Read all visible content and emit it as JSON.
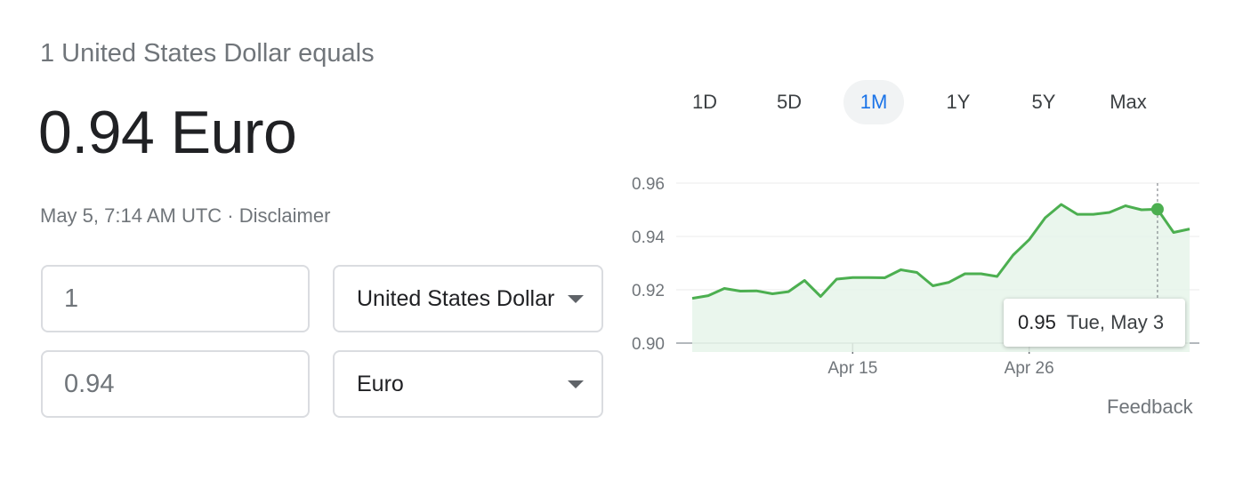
{
  "header": {
    "subtitle": "1 United States Dollar equals",
    "rate": "0.94 Euro",
    "timestamp": "May 5, 7:14 AM UTC",
    "separator": " · ",
    "disclaimer": "Disclaimer"
  },
  "converter": {
    "from_amount": "1",
    "from_currency": "United States Dollar",
    "to_amount": "0.94",
    "to_currency": "Euro"
  },
  "ranges": [
    {
      "label": "1D",
      "active": false
    },
    {
      "label": "5D",
      "active": false
    },
    {
      "label": "1M",
      "active": true
    },
    {
      "label": "1Y",
      "active": false
    },
    {
      "label": "5Y",
      "active": false
    },
    {
      "label": "Max",
      "active": false
    }
  ],
  "tooltip": {
    "value": "0.95",
    "date": "Tue, May 3"
  },
  "feedback": "Feedback",
  "colors": {
    "line": "#4caf50",
    "accent": "#1a73e8",
    "fill": "#e6f4ea"
  },
  "chart_data": {
    "type": "area",
    "title": "",
    "xlabel": "",
    "ylabel": "",
    "ylim": [
      0.9,
      0.96
    ],
    "yticks": [
      "0.96",
      "0.94",
      "0.92",
      "0.90"
    ],
    "xticks": [
      {
        "label": "Apr 15",
        "index": 10
      },
      {
        "label": "Apr 26",
        "index": 21
      }
    ],
    "highlight_index": 29,
    "values": [
      0.9168,
      0.9178,
      0.9205,
      0.9195,
      0.9196,
      0.9185,
      0.9193,
      0.9235,
      0.9175,
      0.924,
      0.9246,
      0.9246,
      0.9245,
      0.9275,
      0.9265,
      0.9215,
      0.9228,
      0.926,
      0.926,
      0.925,
      0.933,
      0.9388,
      0.947,
      0.952,
      0.9483,
      0.9483,
      0.949,
      0.9515,
      0.95,
      0.9502,
      0.9415,
      0.9428
    ]
  }
}
